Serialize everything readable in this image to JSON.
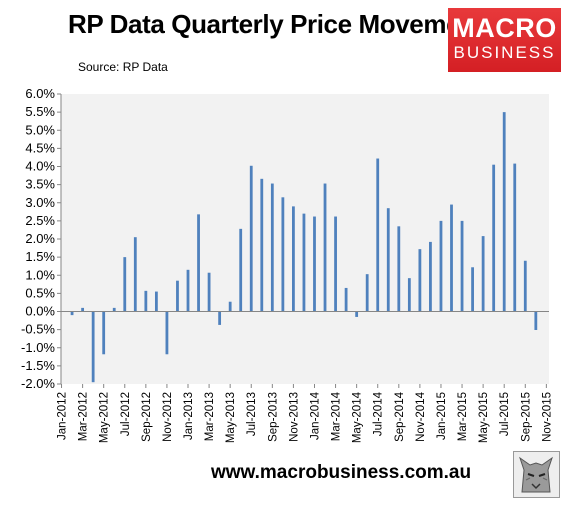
{
  "header": {
    "title": "RP Data Quarterly Price Movements",
    "source": "Source: RP Data"
  },
  "logo": {
    "line1": "MACRO",
    "line2": "BUSINESS"
  },
  "footer": {
    "url": "www.macrobusiness.com.au"
  },
  "chart_data": {
    "type": "bar",
    "title": "RP Data Quarterly Price Movements",
    "xlabel": "",
    "ylabel": "",
    "ylim": [
      -0.02,
      0.06
    ],
    "y_ticks": [
      0.06,
      0.055,
      0.05,
      0.045,
      0.04,
      0.035,
      0.03,
      0.025,
      0.02,
      0.015,
      0.01,
      0.005,
      0,
      -0.005,
      -0.01,
      -0.015,
      -0.02
    ],
    "y_tick_labels": [
      "6.0%",
      "5.5%",
      "5.0%",
      "4.5%",
      "4.0%",
      "3.5%",
      "3.0%",
      "2.5%",
      "2.0%",
      "1.5%",
      "1.0%",
      "0.5%",
      "0.0%",
      "-0.5%",
      "-1.0%",
      "-1.5%",
      "-2.0%"
    ],
    "x_tick_labels": [
      "Jan-2012",
      "Mar-2012",
      "May-2012",
      "Jul-2012",
      "Sep-2012",
      "Nov-2012",
      "Jan-2013",
      "Mar-2013",
      "May-2013",
      "Jul-2013",
      "Sep-2013",
      "Nov-2013",
      "Jan-2014",
      "Mar-2014",
      "May-2014",
      "Jul-2014",
      "Sep-2014",
      "Nov-2014",
      "Jan-2015",
      "Mar-2015",
      "May-2015",
      "Jul-2015",
      "Sep-2015",
      "Nov-2015"
    ],
    "categories": [
      "Jan-2012",
      "Feb-2012",
      "Mar-2012",
      "Apr-2012",
      "May-2012",
      "Jun-2012",
      "Jul-2012",
      "Aug-2012",
      "Sep-2012",
      "Oct-2012",
      "Nov-2012",
      "Dec-2012",
      "Jan-2013",
      "Feb-2013",
      "Mar-2013",
      "Apr-2013",
      "May-2013",
      "Jun-2013",
      "Jul-2013",
      "Aug-2013",
      "Sep-2013",
      "Oct-2013",
      "Nov-2013",
      "Dec-2013",
      "Jan-2014",
      "Feb-2014",
      "Mar-2014",
      "Apr-2014",
      "May-2014",
      "Jun-2014",
      "Jul-2014",
      "Aug-2014",
      "Sep-2014",
      "Oct-2014",
      "Nov-2014",
      "Dec-2014",
      "Jan-2015",
      "Feb-2015",
      "Mar-2015",
      "Apr-2015",
      "May-2015",
      "Jun-2015",
      "Jul-2015",
      "Aug-2015",
      "Sep-2015",
      "Oct-2015",
      "Nov-2015"
    ],
    "values": [
      null,
      -0.001,
      0.001,
      -0.0195,
      -0.0118,
      0.001,
      0.015,
      0.0205,
      0.0057,
      0.0055,
      -0.0118,
      0.0085,
      0.0115,
      0.0268,
      0.0107,
      -0.0037,
      0.0027,
      0.0228,
      0.0402,
      0.0366,
      0.0353,
      0.0315,
      0.029,
      0.027,
      0.0262,
      0.0353,
      0.0262,
      0.0065,
      -0.0015,
      0.0103,
      0.0422,
      0.0285,
      0.0235,
      0.0092,
      0.0172,
      0.0192,
      0.025,
      0.0295,
      0.025,
      0.0122,
      0.0208,
      0.0405,
      0.055,
      0.0408,
      0.014,
      -0.0051,
      null
    ],
    "bar_color": "#4f81bd",
    "plot_background": "#f2f2f2",
    "grid": false,
    "legend": "none"
  }
}
